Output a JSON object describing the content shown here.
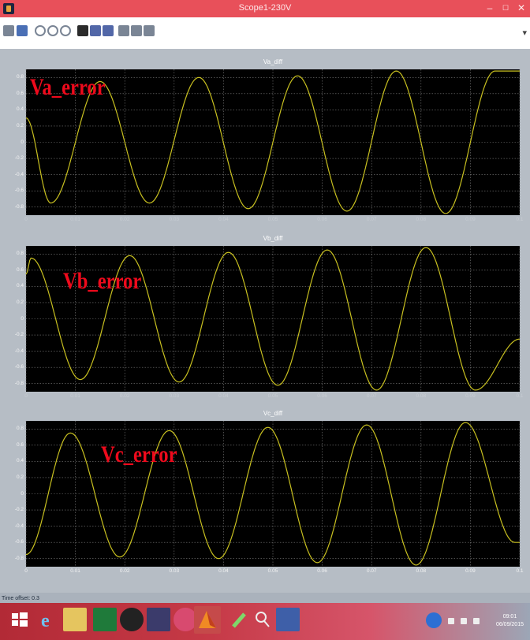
{
  "window": {
    "title": "Scope1-230V",
    "min": "–",
    "max": "☐",
    "close": "✕"
  },
  "toolbar": {
    "icons": [
      "print-icon",
      "params-icon",
      "zoom-icon",
      "zoom-x-icon",
      "zoom-y-icon",
      "autoscale-icon",
      "save-axes-icon",
      "restore-axes-icon",
      "float-icon",
      "lock-axes-icon",
      "signal-selection-icon"
    ],
    "chevron": "▾"
  },
  "panels": [
    {
      "title": "Va_diff",
      "annotation": "Va_error",
      "color": "#c8c020",
      "yticks": [
        "0.8",
        "0.6",
        "0.4",
        "0.2",
        "0",
        "-0.2",
        "-0.4",
        "-0.6",
        "-0.8"
      ]
    },
    {
      "title": "Vb_diff",
      "annotation": "Vb_error",
      "color": "#c8c020",
      "yticks": [
        "0.8",
        "0.6",
        "0.4",
        "0.2",
        "0",
        "-0.2",
        "-0.4",
        "-0.6",
        "-0.8"
      ]
    },
    {
      "title": "Vc_diff",
      "annotation": "Vc_error",
      "color": "#c8c020",
      "yticks": [
        "0.8",
        "0.6",
        "0.4",
        "0.2",
        "0",
        "-0.2",
        "-0.4",
        "-0.6",
        "-0.8"
      ]
    }
  ],
  "xticks": [
    "0",
    "0.01",
    "0.02",
    "0.03",
    "0.04",
    "0.05",
    "0.06",
    "0.07",
    "0.08",
    "0.09",
    "0.1"
  ],
  "status": {
    "time_offset": "Time offset:  0.3"
  },
  "taskbar": {
    "clock_time": "09:01",
    "clock_date": "06/09/2015",
    "apps": [
      "windows-start-icon",
      "internet-explorer-icon",
      "file-explorer-icon",
      "excel-icon",
      "camera-icon",
      "media-icon",
      "hp-icon",
      "matlab-icon",
      "pen-icon",
      "magnifier-icon",
      "word-icon"
    ]
  },
  "chart_data": [
    {
      "type": "line",
      "title": "Va_diff",
      "annotation": "Va_error",
      "xlim": [
        0,
        0.1
      ],
      "ylim": [
        -0.9,
        0.9
      ],
      "series": [
        {
          "x": [
            0,
            0.005,
            0.015,
            0.025,
            0.035,
            0.045,
            0.055,
            0.065,
            0.075,
            0.085,
            0.095,
            0.1
          ],
          "y": [
            0.3,
            -0.75,
            0.75,
            -0.75,
            0.8,
            -0.82,
            0.82,
            -0.85,
            0.88,
            -0.88,
            0.88,
            0.88
          ]
        }
      ]
    },
    {
      "type": "line",
      "title": "Vb_diff",
      "annotation": "Vb_error",
      "xlim": [
        0,
        0.1
      ],
      "ylim": [
        -0.9,
        0.9
      ],
      "series": [
        {
          "x": [
            0,
            0.001,
            0.011,
            0.021,
            0.031,
            0.041,
            0.051,
            0.061,
            0.071,
            0.081,
            0.091,
            0.1
          ],
          "y": [
            0.55,
            0.75,
            -0.75,
            0.78,
            -0.78,
            0.82,
            -0.82,
            0.85,
            -0.88,
            0.88,
            -0.88,
            -0.25
          ]
        }
      ]
    },
    {
      "type": "line",
      "title": "Vc_diff",
      "annotation": "Vc_error",
      "xlim": [
        0,
        0.1
      ],
      "ylim": [
        -0.9,
        0.9
      ],
      "series": [
        {
          "x": [
            0,
            0.009,
            0.019,
            0.029,
            0.039,
            0.049,
            0.059,
            0.069,
            0.079,
            0.089,
            0.099,
            0.1
          ],
          "y": [
            -0.75,
            0.75,
            -0.78,
            0.78,
            -0.8,
            0.82,
            -0.85,
            0.85,
            -0.88,
            0.88,
            -0.6,
            -0.6
          ]
        }
      ]
    }
  ]
}
